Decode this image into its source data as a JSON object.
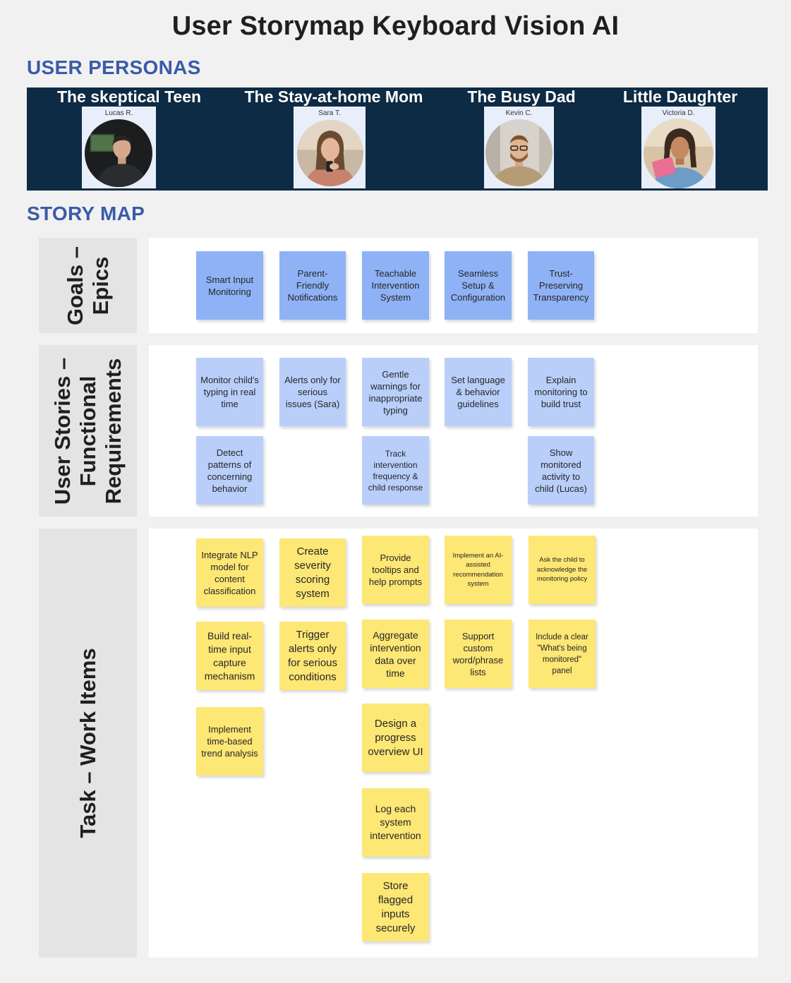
{
  "title": "User Storymap Keyboard Vision AI",
  "sections": {
    "personas": "USER PERSONAS",
    "story_map": "STORY MAP"
  },
  "personas": [
    {
      "name": "The skeptical  Teen",
      "label": "Lucas R.",
      "icon": "teen-avatar-icon"
    },
    {
      "name": "The Stay-at-home Mom",
      "label": "Sara T.",
      "icon": "mom-avatar-icon"
    },
    {
      "name": "The Busy Dad",
      "label": "Kevin C.",
      "icon": "dad-avatar-icon"
    },
    {
      "name": "Little Daughter",
      "label": "Victoria D.",
      "icon": "daughter-avatar-icon"
    }
  ],
  "rows": {
    "epics": "Goals –\nEpics",
    "stories": "User Stories –\nFunctional\nRequirements",
    "tasks": "Task – Work Items"
  },
  "epics": [
    "Smart Input Monitoring",
    "Parent-Friendly Notifications",
    "Teachable Intervention System",
    "Seamless Setup & Configuration",
    "Trust-Preserving Transparency"
  ],
  "stories": [
    "Monitor child's typing in real time",
    "Alerts only for serious issues (Sara)",
    "Gentle warnings for inappropriate typing",
    "Set language & behavior guidelines",
    "Explain monitoring to build trust",
    "Detect patterns of concerning behavior",
    "Track intervention frequency & child response",
    "Show monitored activity to child (Lucas)"
  ],
  "tasks": [
    "Integrate NLP model for content classification",
    "Create severity scoring system",
    "Provide tooltips and help prompts",
    "Implement an AI-assisted recommendation system",
    "Ask the   child to acknowledge the monitoring policy",
    "Build real-time input capture mechanism",
    "Trigger alerts only for serious conditions",
    "Aggregate intervention data over time",
    "Support custom word/phrase lists",
    "Include a clear \"What's being monitored\" panel",
    "Implement time-based trend analysis",
    "Design a progress overview UI",
    "Log each system intervention",
    "Store flagged inputs securely"
  ],
  "colors": {
    "epic": "#8eb2f5",
    "story": "#b9cffa",
    "task": "#fde775",
    "band": "#0d2b45",
    "heading": "#3a5ba8"
  }
}
